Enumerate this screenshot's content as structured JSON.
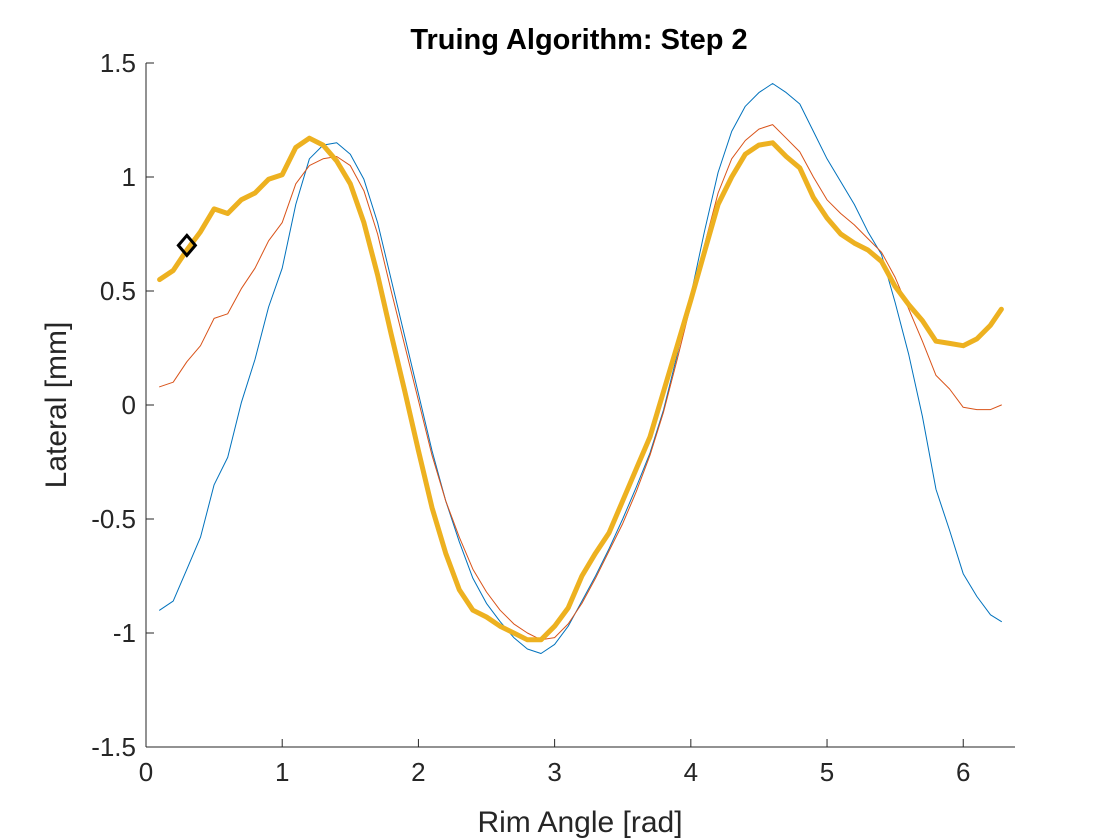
{
  "chart_data": {
    "type": "line",
    "title": "Truing Algorithm: Step 2",
    "xlabel": "Rim Angle [rad]",
    "ylabel": "Lateral [mm]",
    "xlim": [
      0,
      6.38
    ],
    "ylim": [
      -1.5,
      1.5
    ],
    "xticks": [
      0,
      1,
      2,
      3,
      4,
      5,
      6
    ],
    "yticks": [
      -1.5,
      -1,
      -0.5,
      0,
      0.5,
      1,
      1.5
    ],
    "xtick_labels": [
      "0",
      "1",
      "2",
      "3",
      "4",
      "5",
      "6"
    ],
    "ytick_labels": [
      "-1.5",
      "-1",
      "-0.5",
      "0",
      "0.5",
      "1",
      "1.5"
    ],
    "grid": false,
    "x": [
      0.1,
      0.2,
      0.3,
      0.4,
      0.5,
      0.6,
      0.7,
      0.8,
      0.9,
      1.0,
      1.1,
      1.2,
      1.3,
      1.4,
      1.5,
      1.6,
      1.7,
      1.8,
      1.9,
      2.0,
      2.1,
      2.2,
      2.3,
      2.4,
      2.5,
      2.6,
      2.7,
      2.8,
      2.9,
      3.0,
      3.1,
      3.2,
      3.3,
      3.4,
      3.5,
      3.6,
      3.7,
      3.8,
      3.9,
      4.0,
      4.1,
      4.2,
      4.3,
      4.4,
      4.5,
      4.6,
      4.7,
      4.8,
      4.9,
      5.0,
      5.1,
      5.2,
      5.3,
      5.4,
      5.5,
      5.6,
      5.7,
      5.8,
      5.9,
      6.0,
      6.1,
      6.2,
      6.28
    ],
    "series": [
      {
        "color": "#0072BD",
        "width": 1,
        "values": [
          -0.9,
          -0.86,
          -0.72,
          -0.58,
          -0.35,
          -0.23,
          0.01,
          0.2,
          0.43,
          0.6,
          0.88,
          1.08,
          1.14,
          1.15,
          1.1,
          0.99,
          0.8,
          0.55,
          0.3,
          0.05,
          -0.2,
          -0.42,
          -0.6,
          -0.76,
          -0.87,
          -0.95,
          -1.02,
          -1.07,
          -1.09,
          -1.05,
          -0.97,
          -0.86,
          -0.75,
          -0.63,
          -0.5,
          -0.36,
          -0.21,
          -0.02,
          0.22,
          0.48,
          0.76,
          1.02,
          1.2,
          1.31,
          1.37,
          1.41,
          1.37,
          1.32,
          1.2,
          1.08,
          0.98,
          0.88,
          0.76,
          0.66,
          0.45,
          0.22,
          -0.05,
          -0.37,
          -0.55,
          -0.74,
          -0.84,
          -0.92,
          -0.95
        ]
      },
      {
        "color": "#D95319",
        "width": 1,
        "values": [
          0.08,
          0.1,
          0.19,
          0.26,
          0.38,
          0.4,
          0.51,
          0.6,
          0.72,
          0.8,
          0.97,
          1.05,
          1.08,
          1.09,
          1.05,
          0.94,
          0.75,
          0.5,
          0.26,
          0.02,
          -0.22,
          -0.42,
          -0.58,
          -0.72,
          -0.82,
          -0.9,
          -0.96,
          -1.0,
          -1.03,
          -1.02,
          -0.96,
          -0.87,
          -0.76,
          -0.64,
          -0.52,
          -0.38,
          -0.22,
          -0.03,
          0.2,
          0.44,
          0.7,
          0.93,
          1.08,
          1.16,
          1.21,
          1.23,
          1.17,
          1.11,
          1.0,
          0.9,
          0.84,
          0.79,
          0.73,
          0.67,
          0.56,
          0.42,
          0.28,
          0.13,
          0.07,
          -0.01,
          -0.02,
          -0.02,
          0.0
        ]
      },
      {
        "color": "#EDB120",
        "width": 5,
        "values": [
          0.55,
          0.59,
          0.68,
          0.76,
          0.86,
          0.84,
          0.9,
          0.93,
          0.99,
          1.01,
          1.13,
          1.17,
          1.14,
          1.07,
          0.97,
          0.8,
          0.57,
          0.31,
          0.06,
          -0.2,
          -0.45,
          -0.65,
          -0.81,
          -0.9,
          -0.93,
          -0.97,
          -1.0,
          -1.03,
          -1.03,
          -0.97,
          -0.89,
          -0.75,
          -0.65,
          -0.56,
          -0.42,
          -0.28,
          -0.14,
          0.06,
          0.26,
          0.46,
          0.67,
          0.88,
          1.0,
          1.1,
          1.14,
          1.15,
          1.09,
          1.04,
          0.91,
          0.82,
          0.75,
          0.71,
          0.68,
          0.63,
          0.52,
          0.44,
          0.37,
          0.28,
          0.27,
          0.26,
          0.29,
          0.35,
          0.42
        ]
      }
    ],
    "marker": {
      "shape": "diamond",
      "x": 0.3,
      "y": 0.7,
      "color": "#000000"
    }
  }
}
